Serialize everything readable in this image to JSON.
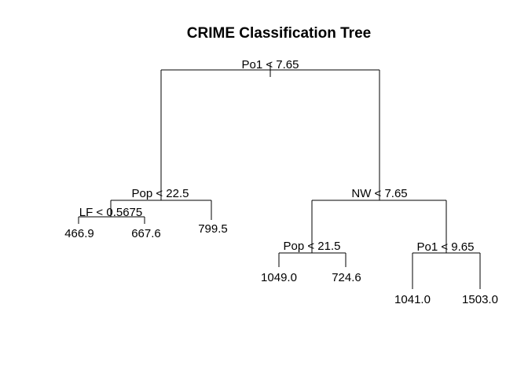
{
  "title": "CRIME Classification Tree",
  "tree": {
    "split": "Po1 < 7.65",
    "left": {
      "split": "Pop < 22.5",
      "left": {
        "split": "LF < 0.5675",
        "left": {
          "leaf": "466.9"
        },
        "right": {
          "leaf": "667.6"
        }
      },
      "right": {
        "leaf": "799.5"
      }
    },
    "right": {
      "split": "NW < 7.65",
      "left": {
        "split": "Pop < 21.5",
        "left": {
          "leaf": "1049.0"
        },
        "right": {
          "leaf": "724.6"
        }
      },
      "right": {
        "split": "Po1 < 9.65",
        "left": {
          "leaf": "1041.0"
        },
        "right": {
          "leaf": "1503.0"
        }
      }
    }
  }
}
